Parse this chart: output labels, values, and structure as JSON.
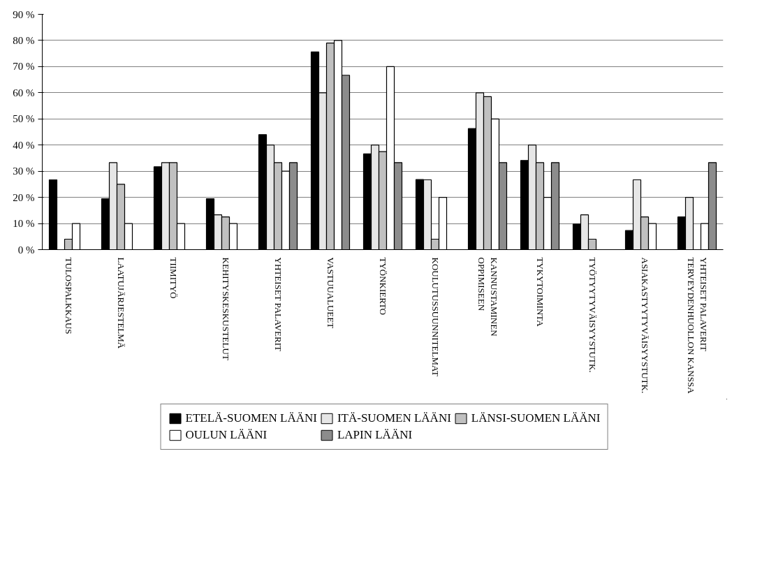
{
  "chart_data": {
    "type": "bar",
    "categories": [
      "TULOSPALKKAUS",
      "LAATUJÄRJESTELMÄ",
      "TIIMITYÖ",
      "KEHITYSKESKUSTELUT",
      "YHTEISET PALAVERIT",
      "VASTUUALUEET",
      "TYÖNKIERTO",
      "KOULUTUSSUUNNITELMAT",
      "KANNUSTAMINEN\nOPPIMISEEN",
      "TYKYTOIMINTA",
      "TYÖTYYTYVÄISYYSTUTK.",
      "ASIAKASTYYTYVÄISYYSTUTK.",
      "YHTEISET PALAVERIT\nTERVEYDENHUOLLON KANSSA"
    ],
    "series": [
      {
        "name": "ETELÄ-SUOMEN LÄÄNI",
        "color": "#000000",
        "values": [
          26.7,
          19.5,
          31.7,
          19.5,
          44,
          75.6,
          36.6,
          26.8,
          46.3,
          34.1,
          9.8,
          7.3,
          12.5
        ]
      },
      {
        "name": "ITÄ-SUOMEN LÄÄNI",
        "color": "#e6e6e6",
        "values": [
          null,
          33.3,
          33.3,
          13.3,
          40,
          60,
          40,
          26.7,
          60,
          40,
          13.3,
          26.7,
          20
        ]
      },
      {
        "name": "LÄNSI-SUOMEN LÄÄNI",
        "color": "#c0c0c0",
        "values": [
          4,
          25,
          33.3,
          12.5,
          33.3,
          79,
          37.5,
          4,
          58.5,
          33.3,
          4,
          12.5,
          null
        ]
      },
      {
        "name": "OULUN LÄÄNI",
        "color": "#ffffff",
        "values": [
          10,
          10,
          10,
          10,
          30,
          80,
          70,
          20,
          50,
          20,
          null,
          10,
          10
        ]
      },
      {
        "name": "LAPIN LÄÄNI",
        "color": "#8c8c8c",
        "values": [
          null,
          null,
          null,
          null,
          33.3,
          66.7,
          33.3,
          null,
          33.3,
          33.3,
          null,
          null,
          33.3
        ]
      }
    ],
    "ylim": [
      0,
      90
    ],
    "yticks": [
      {
        "value": 0,
        "label": "0 %"
      },
      {
        "value": 10,
        "label": "10 %"
      },
      {
        "value": 20,
        "label": "20 %"
      },
      {
        "value": 30,
        "label": "30 %"
      },
      {
        "value": 40,
        "label": "40 %"
      },
      {
        "value": 50,
        "label": "50 %"
      },
      {
        "value": 60,
        "label": "60 %"
      },
      {
        "value": 70,
        "label": "70 %"
      },
      {
        "value": 80,
        "label": "80 %"
      },
      {
        "value": 90,
        "label": "90 %"
      }
    ],
    "grid": "y",
    "legend": "bottom"
  }
}
